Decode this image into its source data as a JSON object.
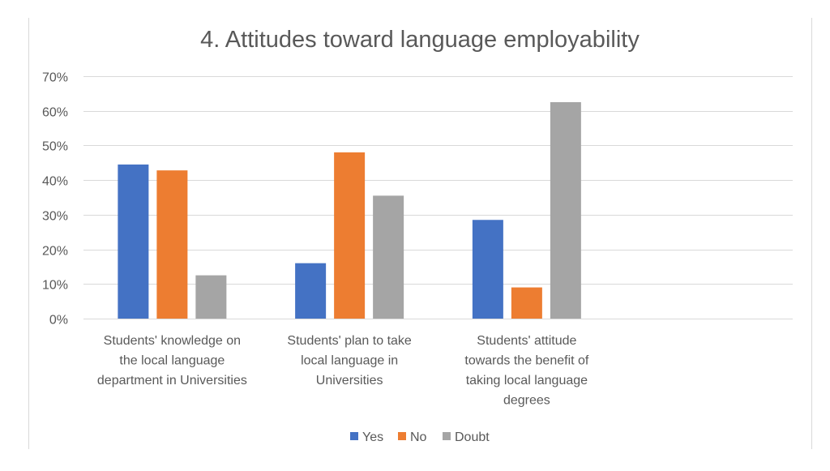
{
  "chart_data": {
    "type": "bar",
    "title": "4. Attitudes toward language employability",
    "categories": [
      [
        "Students' knowledge on",
        "the local language",
        "department in Universities"
      ],
      [
        "Students' plan to take",
        "local language in",
        "Universities"
      ],
      [
        "Students' attitude",
        "towards the benefit of",
        "taking local language",
        "degrees"
      ],
      []
    ],
    "series": [
      {
        "name": "Yes",
        "color": "#4472C4",
        "values": [
          0.445,
          0.16,
          0.285,
          null
        ]
      },
      {
        "name": "No",
        "color": "#ED7D31",
        "values": [
          0.428,
          0.48,
          0.09,
          null
        ]
      },
      {
        "name": "Doubt",
        "color": "#A5A5A5",
        "values": [
          0.125,
          0.355,
          0.625,
          null
        ]
      }
    ],
    "ylim": [
      0,
      0.7
    ],
    "yticks": [
      "0%",
      "10%",
      "20%",
      "30%",
      "40%",
      "50%",
      "60%",
      "70%"
    ],
    "grid": true,
    "legend_position": "bottom"
  }
}
